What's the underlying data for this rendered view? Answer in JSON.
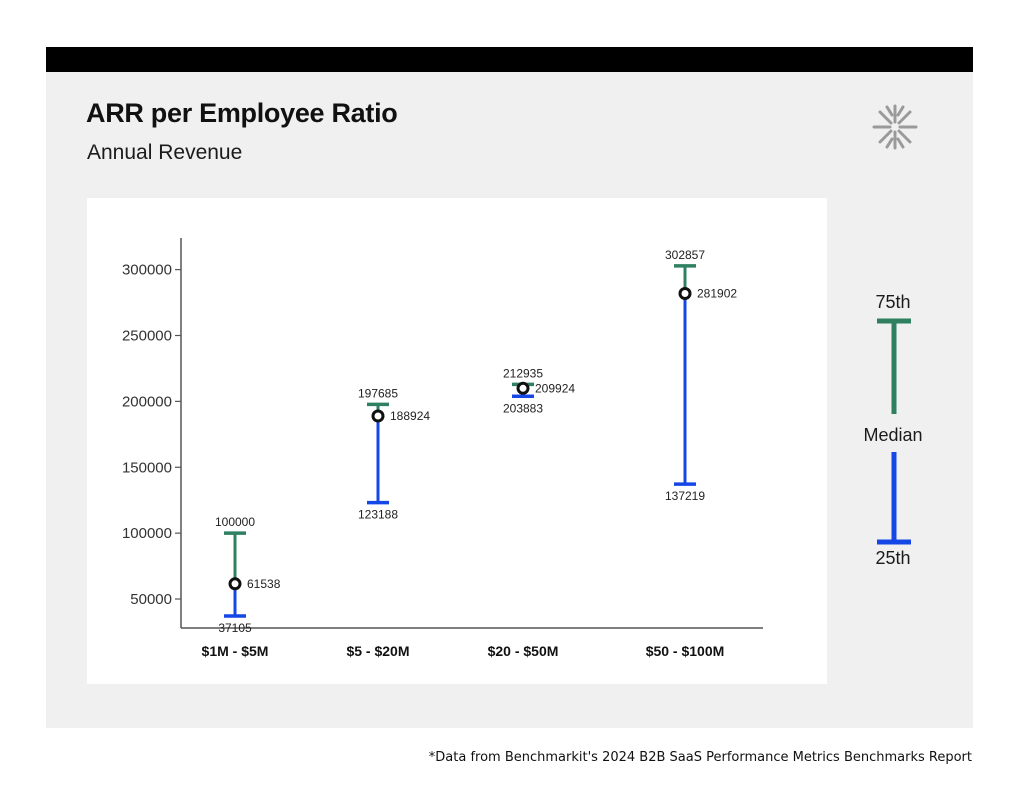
{
  "header": {
    "title": "ARR per Employee Ratio",
    "subtitle": "Annual Revenue",
    "logo_icon": "asterisk-snowflake-logo-icon"
  },
  "legend": {
    "top": "75th",
    "middle": "Median",
    "bottom": "25th"
  },
  "footnote": "*Data from Benchmarkit's 2024 B2B SaaS Performance Metrics Benchmarks Report",
  "colors": {
    "upper": "#2e8060",
    "lower": "#1447e6",
    "median": "#111111",
    "axis": "#555555",
    "panel": "#eff0ef"
  },
  "chart_data": {
    "type": "range",
    "title": "ARR per Employee Ratio",
    "subtitle": "Annual Revenue",
    "ylim": [
      28000,
      324000
    ],
    "yticks": [
      50000,
      100000,
      150000,
      200000,
      250000,
      300000
    ],
    "categories": [
      "$1M - $5M",
      "$5 - $20M",
      "$20 - $50M",
      "$50 - $100M"
    ],
    "series": [
      {
        "name": "75th",
        "values": [
          100000,
          197685,
          212935,
          302857
        ]
      },
      {
        "name": "Median",
        "values": [
          61538,
          188924,
          209924,
          281902
        ]
      },
      {
        "name": "25th",
        "values": [
          37105,
          123188,
          203883,
          137219
        ]
      }
    ],
    "grid": false
  }
}
